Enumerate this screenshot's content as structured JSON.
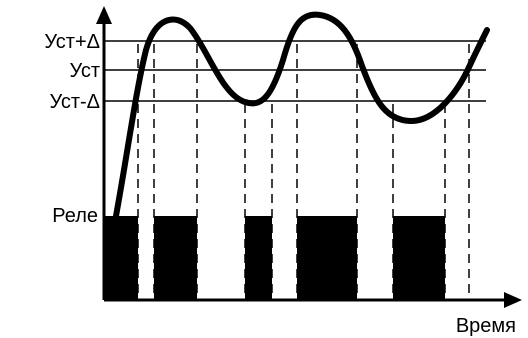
{
  "labels": {
    "setpoint_plus": "Уст+Δ",
    "setpoint": "Уст",
    "setpoint_minus": "Уст-Δ",
    "relay": "Реле",
    "time": "Время"
  },
  "colors": {
    "stroke": "#000000",
    "fill": "#000000",
    "background": "#ffffff"
  }
}
